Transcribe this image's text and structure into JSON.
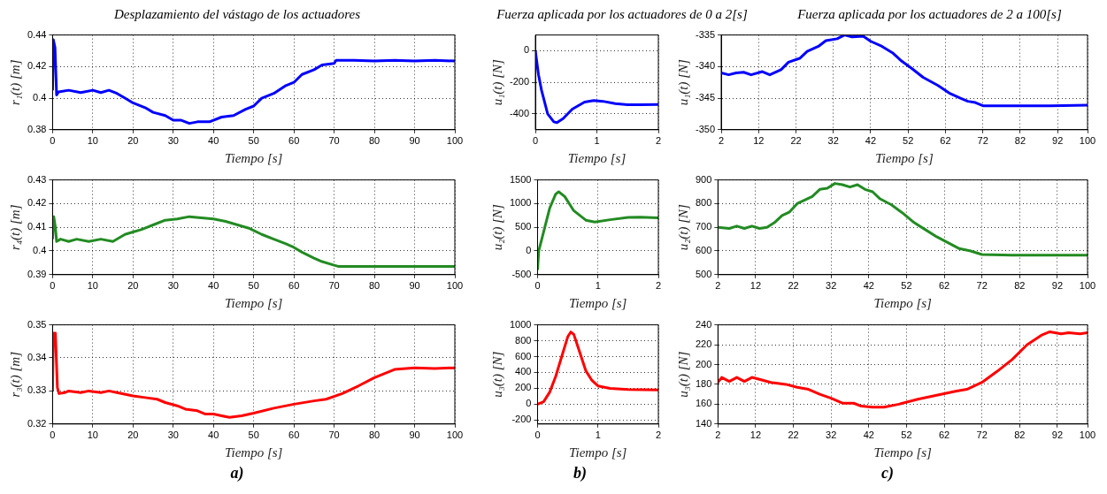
{
  "chart_data": [
    {
      "type": "line",
      "title": "Desplazamiento del vástago de los actuadores",
      "xlabel": "Tiempo [s]",
      "ylabel": "r₁(t) [m]",
      "xlim": [
        0,
        100
      ],
      "xticks": [
        0,
        10,
        20,
        30,
        40,
        50,
        60,
        70,
        80,
        90,
        100
      ],
      "ylim": [
        0.38,
        0.44
      ],
      "yticks": [
        0.38,
        0.4,
        0.42,
        0.44
      ],
      "grid": true,
      "series": [
        {
          "color": "#0000ff",
          "x": [
            0,
            0.2,
            0.6,
            1,
            1.5,
            4,
            7,
            10,
            12,
            14,
            16,
            18,
            20,
            23,
            25,
            28,
            30,
            32,
            34,
            36,
            39,
            42,
            45,
            48,
            50,
            52,
            55,
            58,
            60,
            62,
            65,
            67,
            70,
            70.5,
            75,
            80,
            85,
            90,
            95,
            100
          ],
          "values": [
            0.405,
            0.437,
            0.432,
            0.402,
            0.404,
            0.405,
            0.4035,
            0.405,
            0.4035,
            0.405,
            0.403,
            0.4,
            0.397,
            0.394,
            0.391,
            0.389,
            0.386,
            0.386,
            0.384,
            0.385,
            0.385,
            0.388,
            0.389,
            0.393,
            0.395,
            0.4,
            0.403,
            0.408,
            0.41,
            0.415,
            0.418,
            0.421,
            0.422,
            0.424,
            0.424,
            0.4235,
            0.424,
            0.4235,
            0.424,
            0.4235
          ]
        }
      ]
    },
    {
      "type": "line",
      "title": "Fuerza aplicada por los actuadores de 0 a 2[s]",
      "xlabel": "Tiempo [s]",
      "ylabel": "u₁(t) [N]",
      "xlim": [
        0,
        2
      ],
      "xticks": [
        0,
        1,
        2
      ],
      "ylim": [
        -500,
        100
      ],
      "yticks": [
        -400,
        -200,
        0
      ],
      "grid": true,
      "series": [
        {
          "color": "#0000ff",
          "x": [
            0,
            0.05,
            0.1,
            0.2,
            0.3,
            0.35,
            0.45,
            0.6,
            0.8,
            0.95,
            1.1,
            1.3,
            1.5,
            1.7,
            2
          ],
          "values": [
            0,
            -150,
            -250,
            -400,
            -450,
            -455,
            -430,
            -370,
            -325,
            -315,
            -320,
            -335,
            -342,
            -342,
            -340
          ]
        }
      ]
    },
    {
      "type": "line",
      "title": "Fuerza aplicada por los actuadores de 2 a 100[s]",
      "xlabel": "Tiempo [s]",
      "ylabel": "u₁(t) [N]",
      "xlim": [
        2,
        100
      ],
      "xticks": [
        2,
        12,
        22,
        32,
        42,
        52,
        62,
        72,
        82,
        92,
        100
      ],
      "ylim": [
        -350,
        -335
      ],
      "yticks": [
        -350,
        -345,
        -340,
        -335
      ],
      "grid": true,
      "series": [
        {
          "color": "#0000ff",
          "x": [
            2,
            4,
            6,
            8,
            10,
            13,
            15,
            18,
            20,
            23,
            25,
            28,
            30,
            33,
            35,
            37,
            40,
            42,
            45,
            48,
            50,
            53,
            56,
            60,
            63,
            66,
            68,
            70,
            72,
            80,
            90,
            100
          ],
          "values": [
            -341,
            -341.3,
            -341,
            -340.9,
            -341.3,
            -340.8,
            -341.3,
            -340.5,
            -339.3,
            -338.7,
            -337.6,
            -336.8,
            -335.9,
            -335.6,
            -335,
            -335.3,
            -335.2,
            -336,
            -336.8,
            -337.9,
            -339,
            -340.3,
            -341.7,
            -343,
            -344.2,
            -345,
            -345.5,
            -345.7,
            -346.2,
            -346.2,
            -346.2,
            -346.1
          ]
        }
      ]
    },
    {
      "type": "line",
      "xlabel": "Tiempo [s]",
      "ylabel": "r₄(t) [m]",
      "xlim": [
        0,
        100
      ],
      "xticks": [
        0,
        10,
        20,
        30,
        40,
        50,
        60,
        70,
        80,
        90,
        100
      ],
      "ylim": [
        0.39,
        0.43
      ],
      "yticks": [
        0.39,
        0.4,
        0.41,
        0.42,
        0.43
      ],
      "grid": true,
      "series": [
        {
          "color": "#228b22",
          "x": [
            0,
            0.3,
            0.7,
            1,
            2,
            4,
            6,
            9,
            12,
            15,
            18,
            20,
            22,
            25,
            28,
            31,
            34,
            37,
            40,
            43,
            46,
            49,
            52,
            55,
            58,
            60,
            62,
            65,
            67,
            70,
            71,
            80,
            90,
            100
          ],
          "values": [
            0.405,
            0.4145,
            0.41,
            0.404,
            0.405,
            0.404,
            0.405,
            0.404,
            0.405,
            0.404,
            0.407,
            0.408,
            0.409,
            0.411,
            0.413,
            0.4135,
            0.4145,
            0.414,
            0.4135,
            0.4125,
            0.411,
            0.4095,
            0.407,
            0.405,
            0.403,
            0.4015,
            0.3995,
            0.397,
            0.3955,
            0.394,
            0.3935,
            0.3935,
            0.3935,
            0.3935
          ]
        }
      ]
    },
    {
      "type": "line",
      "xlabel": "Tiempo [s]",
      "ylabel": "u₂(t) [N]",
      "xlim": [
        0,
        2
      ],
      "xticks": [
        0,
        1,
        2
      ],
      "ylim": [
        -500,
        1500
      ],
      "yticks": [
        -500,
        0,
        500,
        1000,
        1500
      ],
      "grid": true,
      "series": [
        {
          "color": "#228b22",
          "x": [
            0,
            0.02,
            0.05,
            0.1,
            0.2,
            0.3,
            0.35,
            0.45,
            0.6,
            0.8,
            0.95,
            1.2,
            1.5,
            1.7,
            2
          ],
          "values": [
            -400,
            0,
            150,
            400,
            900,
            1200,
            1250,
            1150,
            850,
            650,
            610,
            660,
            710,
            715,
            700
          ]
        }
      ]
    },
    {
      "type": "line",
      "xlabel": "Tiempo [s]",
      "ylabel": "u₂(t) [N]",
      "xlim": [
        2,
        100
      ],
      "xticks": [
        2,
        12,
        22,
        32,
        42,
        52,
        62,
        72,
        82,
        92,
        100
      ],
      "ylim": [
        500,
        900
      ],
      "yticks": [
        500,
        600,
        700,
        800,
        900
      ],
      "grid": true,
      "series": [
        {
          "color": "#228b22",
          "x": [
            2,
            5,
            7,
            9,
            11,
            13,
            15,
            17,
            19,
            21,
            23,
            25,
            27,
            29,
            31,
            33,
            35,
            37,
            39,
            41,
            43,
            45,
            48,
            51,
            54,
            57,
            60,
            63,
            66,
            69,
            72,
            80,
            90,
            100
          ],
          "values": [
            700,
            695,
            705,
            695,
            705,
            695,
            700,
            720,
            750,
            765,
            800,
            815,
            830,
            860,
            865,
            885,
            880,
            870,
            880,
            860,
            850,
            820,
            795,
            760,
            720,
            690,
            660,
            635,
            610,
            600,
            585,
            582,
            582,
            582
          ]
        }
      ]
    },
    {
      "type": "line",
      "xlabel": "Tiempo [s]",
      "ylabel": "r₃(t) [m]",
      "xlim": [
        0,
        100
      ],
      "xticks": [
        0,
        10,
        20,
        30,
        40,
        50,
        60,
        70,
        80,
        90,
        100
      ],
      "ylim": [
        0.32,
        0.35
      ],
      "yticks": [
        0.32,
        0.33,
        0.34,
        0.35
      ],
      "grid": true,
      "annotations": [
        "a)"
      ],
      "series": [
        {
          "color": "#ff0000",
          "x": [
            0,
            0.2,
            0.7,
            1.2,
            1.6,
            3,
            4,
            7,
            9,
            12,
            14,
            16,
            20,
            23,
            26,
            28,
            31,
            33,
            36,
            38,
            40,
            42,
            44,
            47,
            50,
            55,
            60,
            65,
            68,
            72,
            76,
            80,
            85,
            90,
            95,
            100
          ],
          "values": [
            0.33,
            0.3475,
            0.3475,
            0.331,
            0.3292,
            0.3295,
            0.33,
            0.3295,
            0.33,
            0.3295,
            0.33,
            0.3295,
            0.3285,
            0.328,
            0.3275,
            0.3265,
            0.3255,
            0.3245,
            0.324,
            0.323,
            0.323,
            0.3225,
            0.322,
            0.3225,
            0.3233,
            0.3248,
            0.326,
            0.327,
            0.3275,
            0.3292,
            0.3315,
            0.334,
            0.3365,
            0.337,
            0.3368,
            0.337
          ]
        }
      ]
    },
    {
      "type": "line",
      "xlabel": "Tiempo [s]",
      "ylabel": "u₃(t) [N]",
      "xlim": [
        0,
        2
      ],
      "xticks": [
        0,
        1,
        2
      ],
      "ylim": [
        -250,
        1000
      ],
      "yticks": [
        -200,
        0,
        200,
        400,
        600,
        800,
        1000
      ],
      "grid": true,
      "annotations": [
        "b)"
      ],
      "series": [
        {
          "color": "#ff0000",
          "x": [
            0,
            0.1,
            0.2,
            0.3,
            0.4,
            0.5,
            0.55,
            0.6,
            0.7,
            0.8,
            0.9,
            1,
            1.2,
            1.5,
            2
          ],
          "values": [
            0,
            30,
            150,
            350,
            600,
            850,
            910,
            880,
            650,
            420,
            300,
            230,
            200,
            185,
            180
          ]
        }
      ]
    },
    {
      "type": "line",
      "xlabel": "Tiempo [s]",
      "ylabel": "u₃(t) [N]",
      "xlim": [
        2,
        100
      ],
      "xticks": [
        2,
        12,
        22,
        32,
        42,
        52,
        62,
        72,
        82,
        92,
        100
      ],
      "ylim": [
        140,
        240
      ],
      "yticks": [
        140,
        160,
        180,
        200,
        220,
        240
      ],
      "grid": true,
      "annotations": [
        "c)"
      ],
      "series": [
        {
          "color": "#ff0000",
          "x": [
            2,
            3,
            5,
            7,
            9,
            11,
            13,
            16,
            20,
            23,
            26,
            29,
            32,
            35,
            38,
            40,
            43,
            46,
            50,
            55,
            60,
            65,
            68,
            72,
            76,
            80,
            84,
            88,
            90,
            93,
            95,
            98,
            100
          ],
          "values": [
            182,
            187,
            183,
            187,
            183,
            187,
            185,
            182,
            180,
            177,
            175,
            170,
            166,
            161,
            161,
            158,
            157,
            157,
            160,
            165,
            169,
            173,
            175,
            182,
            193,
            205,
            220,
            230,
            233,
            231,
            232,
            231,
            232
          ]
        }
      ]
    }
  ]
}
